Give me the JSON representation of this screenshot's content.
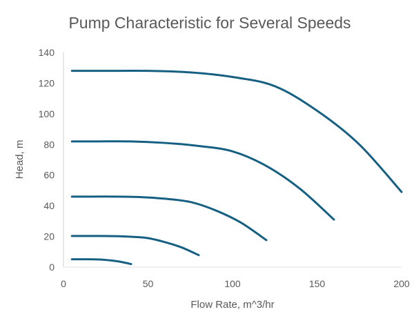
{
  "chart_data": {
    "type": "line",
    "title": "Pump Characteristic for Several Speeds",
    "xlabel": "Flow Rate, m^3/hr",
    "ylabel": "Head, m",
    "xlim": [
      0,
      200
    ],
    "ylim": [
      0,
      140
    ],
    "xticks": [
      0,
      50,
      100,
      150,
      200
    ],
    "yticks": [
      0,
      20,
      40,
      60,
      80,
      100,
      120,
      140
    ],
    "grid": false,
    "legend": "none",
    "line_color": "#156082",
    "series": [
      {
        "x": [
          5,
          25,
          50,
          75,
          100,
          125,
          150,
          175,
          200
        ],
        "y": [
          128,
          128,
          128,
          127,
          124,
          118,
          102,
          80,
          49
        ]
      },
      {
        "x": [
          5,
          20,
          40,
          60,
          80,
          100,
          120,
          140,
          160
        ],
        "y": [
          82,
          82,
          82,
          81,
          79,
          75.5,
          66,
          51,
          31
        ]
      },
      {
        "x": [
          5,
          15,
          30,
          45,
          60,
          75,
          90,
          105,
          120
        ],
        "y": [
          46,
          46,
          46,
          45.7,
          44.6,
          42.5,
          37,
          29,
          17.6
        ]
      },
      {
        "x": [
          5,
          10,
          20,
          30,
          40,
          50,
          60,
          70,
          80
        ],
        "y": [
          20.3,
          20.3,
          20.3,
          20.2,
          19.8,
          18.9,
          16.3,
          12.8,
          7.8
        ]
      },
      {
        "x": [
          5,
          10,
          15,
          20,
          25,
          30,
          35,
          40
        ],
        "y": [
          5.1,
          5.1,
          5.1,
          5,
          4.7,
          4.1,
          3.2,
          2
        ]
      }
    ]
  }
}
